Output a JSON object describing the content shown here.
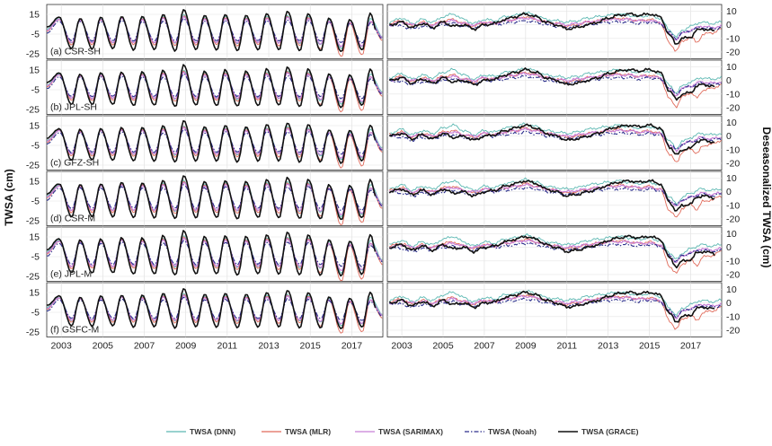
{
  "chart_data": {
    "type": "line",
    "ylabel_left": "TWSA (cm)",
    "ylabel_right": "Deseasonalized TWSA (cm)",
    "x_ticks": [
      "2003",
      "2005",
      "2007",
      "2009",
      "2011",
      "2013",
      "2015",
      "2017"
    ],
    "xlim": [
      2002.3,
      2018.5
    ],
    "left_axis": {
      "ylim": [
        -30,
        25
      ],
      "ticks": [
        "15",
        "-5",
        "-25"
      ],
      "tick_values": [
        15,
        -5,
        -25
      ]
    },
    "right_axis": {
      "ylim": [
        -25,
        15
      ],
      "ticks": [
        "10",
        "0",
        "-10",
        "-20"
      ],
      "tick_values": [
        10,
        0,
        -10,
        -20
      ]
    },
    "panels": [
      "(a) CSR-SH",
      "(b) JPL-SH",
      "(c) GFZ-SH",
      "(d) CSR-M",
      "(e) JPL-M",
      "(f) GSFC-M"
    ],
    "series": [
      {
        "name": "TWSA (DNN)",
        "color": "#5cb8b2",
        "dash": "",
        "weight": 0.9
      },
      {
        "name": "TWSA (MLR)",
        "color": "#e06a5a",
        "dash": "",
        "weight": 0.9
      },
      {
        "name": "TWSA (SARIMAX)",
        "color": "#c77fd6",
        "dash": "",
        "weight": 1.2
      },
      {
        "name": "TWSA (Noah)",
        "color": "#2c2f8c",
        "dash": "5,2,1.5,2",
        "weight": 1.1
      },
      {
        "name": "TWSA (GRACE)",
        "color": "#111111",
        "dash": "",
        "weight": 1.6
      }
    ],
    "seasonal": {
      "Noah": [
        [
          2002.3,
          -4
        ],
        [
          2002.9,
          8
        ],
        [
          2003.5,
          -12
        ],
        [
          2003.9,
          8
        ],
        [
          2004.5,
          -12
        ],
        [
          2004.9,
          8
        ],
        [
          2005.5,
          -12
        ],
        [
          2005.9,
          9
        ],
        [
          2006.5,
          -12
        ],
        [
          2006.9,
          8
        ],
        [
          2007.5,
          -12
        ],
        [
          2007.9,
          8
        ],
        [
          2008.5,
          -12
        ],
        [
          2008.9,
          11
        ],
        [
          2009.5,
          -12
        ],
        [
          2009.9,
          8
        ],
        [
          2010.5,
          -12
        ],
        [
          2010.9,
          9
        ],
        [
          2011.5,
          -12
        ],
        [
          2011.9,
          8
        ],
        [
          2012.5,
          -12
        ],
        [
          2012.9,
          9
        ],
        [
          2013.5,
          -12
        ],
        [
          2013.9,
          9
        ],
        [
          2014.5,
          -12
        ],
        [
          2014.9,
          9
        ],
        [
          2015.5,
          -12
        ],
        [
          2015.9,
          7
        ],
        [
          2016.5,
          -14
        ],
        [
          2016.9,
          6
        ],
        [
          2017.5,
          -14
        ],
        [
          2017.9,
          6
        ],
        [
          2018.5,
          -10
        ]
      ],
      "GRACE": [
        [
          2002.3,
          2
        ],
        [
          2002.9,
          12
        ],
        [
          2003.5,
          -20
        ],
        [
          2003.9,
          11
        ],
        [
          2004.5,
          -20
        ],
        [
          2004.9,
          12
        ],
        [
          2005.5,
          -20
        ],
        [
          2005.9,
          13
        ],
        [
          2006.5,
          -21
        ],
        [
          2006.9,
          13
        ],
        [
          2007.5,
          -21
        ],
        [
          2007.9,
          15
        ],
        [
          2008.5,
          -22
        ],
        [
          2008.9,
          20
        ],
        [
          2009.5,
          -21
        ],
        [
          2009.9,
          14
        ],
        [
          2010.5,
          -21
        ],
        [
          2010.9,
          15
        ],
        [
          2011.5,
          -22
        ],
        [
          2011.9,
          14
        ],
        [
          2012.5,
          -21
        ],
        [
          2012.9,
          16
        ],
        [
          2013.5,
          -21
        ],
        [
          2013.9,
          18
        ],
        [
          2014.5,
          -22
        ],
        [
          2014.9,
          16
        ],
        [
          2015.5,
          -22
        ],
        [
          2015.9,
          11
        ],
        [
          2016.5,
          -23
        ],
        [
          2016.9,
          10
        ],
        [
          2017.5,
          -21
        ],
        [
          2017.9,
          16
        ],
        [
          2018.2,
          -2
        ]
      ],
      "MLR": [
        [
          2002.3,
          -2
        ],
        [
          2002.9,
          10
        ],
        [
          2003.5,
          -16
        ],
        [
          2003.9,
          10
        ],
        [
          2004.5,
          -16
        ],
        [
          2004.9,
          10
        ],
        [
          2005.5,
          -16
        ],
        [
          2005.9,
          12
        ],
        [
          2006.5,
          -16
        ],
        [
          2006.9,
          11
        ],
        [
          2007.5,
          -16
        ],
        [
          2007.9,
          12
        ],
        [
          2008.5,
          -17
        ],
        [
          2008.9,
          14
        ],
        [
          2009.5,
          -16
        ],
        [
          2009.9,
          11
        ],
        [
          2010.5,
          -16
        ],
        [
          2010.9,
          12
        ],
        [
          2011.5,
          -17
        ],
        [
          2011.9,
          11
        ],
        [
          2012.5,
          -16
        ],
        [
          2012.9,
          12
        ],
        [
          2013.5,
          -17
        ],
        [
          2013.9,
          13
        ],
        [
          2014.5,
          -17
        ],
        [
          2014.9,
          12
        ],
        [
          2015.5,
          -20
        ],
        [
          2015.9,
          8
        ],
        [
          2016.5,
          -28
        ],
        [
          2016.9,
          6
        ],
        [
          2017.5,
          -26
        ],
        [
          2017.9,
          8
        ],
        [
          2018.5,
          -12
        ]
      ],
      "DNN": [
        [
          2002.3,
          0
        ],
        [
          2002.9,
          11
        ],
        [
          2003.5,
          -14
        ],
        [
          2003.9,
          10
        ],
        [
          2004.5,
          -14
        ],
        [
          2004.9,
          11
        ],
        [
          2005.5,
          -14
        ],
        [
          2005.9,
          12
        ],
        [
          2006.5,
          -14
        ],
        [
          2006.9,
          12
        ],
        [
          2007.5,
          -14
        ],
        [
          2007.9,
          13
        ],
        [
          2008.5,
          -15
        ],
        [
          2008.9,
          15
        ],
        [
          2009.5,
          -14
        ],
        [
          2009.9,
          12
        ],
        [
          2010.5,
          -14
        ],
        [
          2010.9,
          13
        ],
        [
          2011.5,
          -15
        ],
        [
          2011.9,
          12
        ],
        [
          2012.5,
          -14
        ],
        [
          2012.9,
          13
        ],
        [
          2013.5,
          -14
        ],
        [
          2013.9,
          14
        ],
        [
          2014.5,
          -15
        ],
        [
          2014.9,
          13
        ],
        [
          2015.5,
          -16
        ],
        [
          2015.9,
          10
        ],
        [
          2016.5,
          -20
        ],
        [
          2016.9,
          9
        ],
        [
          2017.5,
          -18
        ],
        [
          2017.9,
          11
        ],
        [
          2018.5,
          -8
        ]
      ],
      "SARIMAX": [
        [
          2002.3,
          -1
        ],
        [
          2002.9,
          10
        ],
        [
          2003.5,
          -14
        ],
        [
          2003.9,
          9
        ],
        [
          2004.5,
          -14
        ],
        [
          2004.9,
          10
        ],
        [
          2005.5,
          -14
        ],
        [
          2005.9,
          11
        ],
        [
          2006.5,
          -14
        ],
        [
          2006.9,
          10
        ],
        [
          2007.5,
          -14
        ],
        [
          2007.9,
          11
        ],
        [
          2008.5,
          -14
        ],
        [
          2008.9,
          13
        ],
        [
          2009.5,
          -14
        ],
        [
          2009.9,
          10
        ],
        [
          2010.5,
          -14
        ],
        [
          2010.9,
          11
        ],
        [
          2011.5,
          -14
        ],
        [
          2011.9,
          10
        ],
        [
          2012.5,
          -14
        ],
        [
          2012.9,
          11
        ],
        [
          2013.5,
          -14
        ],
        [
          2013.9,
          12
        ],
        [
          2014.5,
          -14
        ],
        [
          2014.9,
          11
        ],
        [
          2015.5,
          -15
        ],
        [
          2015.9,
          8
        ],
        [
          2016.5,
          -18
        ],
        [
          2016.9,
          7
        ],
        [
          2017.5,
          -17
        ],
        [
          2017.9,
          8
        ],
        [
          2018.5,
          -9
        ]
      ]
    },
    "deseasonalized": {
      "GRACE": [
        [
          2002.4,
          0
        ],
        [
          2003.0,
          2
        ],
        [
          2003.5,
          -2
        ],
        [
          2004.0,
          1
        ],
        [
          2004.5,
          -2
        ],
        [
          2005.0,
          2
        ],
        [
          2005.5,
          -1
        ],
        [
          2006.0,
          0
        ],
        [
          2006.5,
          -3
        ],
        [
          2007.0,
          0
        ],
        [
          2007.5,
          1
        ],
        [
          2008.0,
          4
        ],
        [
          2008.5,
          6
        ],
        [
          2009.0,
          8
        ],
        [
          2009.5,
          6
        ],
        [
          2010.0,
          2
        ],
        [
          2010.5,
          0
        ],
        [
          2011.0,
          -3
        ],
        [
          2011.5,
          -2
        ],
        [
          2012.0,
          0
        ],
        [
          2012.5,
          2
        ],
        [
          2013.0,
          5
        ],
        [
          2013.5,
          7
        ],
        [
          2014.0,
          8
        ],
        [
          2014.5,
          7
        ],
        [
          2015.0,
          8
        ],
        [
          2015.5,
          6
        ],
        [
          2016.0,
          -8
        ],
        [
          2016.3,
          -14
        ],
        [
          2016.6,
          -10
        ],
        [
          2017.0,
          -9
        ],
        [
          2017.3,
          -4
        ],
        [
          2017.6,
          -3
        ],
        [
          2018.0,
          -4
        ],
        [
          2018.2,
          -5
        ]
      ],
      "Noah": [
        [
          2002.4,
          0
        ],
        [
          2003.0,
          -1
        ],
        [
          2003.5,
          -3
        ],
        [
          2004.0,
          -1
        ],
        [
          2004.5,
          -2
        ],
        [
          2005.0,
          0
        ],
        [
          2005.5,
          1
        ],
        [
          2006.0,
          -1
        ],
        [
          2006.5,
          -2
        ],
        [
          2007.0,
          0
        ],
        [
          2007.5,
          0
        ],
        [
          2008.0,
          1
        ],
        [
          2008.5,
          2
        ],
        [
          2009.0,
          3
        ],
        [
          2009.5,
          2
        ],
        [
          2010.0,
          0
        ],
        [
          2010.5,
          -1
        ],
        [
          2011.0,
          -2
        ],
        [
          2011.5,
          -1
        ],
        [
          2012.0,
          0
        ],
        [
          2012.5,
          1
        ],
        [
          2013.0,
          2
        ],
        [
          2013.5,
          2
        ],
        [
          2014.0,
          2
        ],
        [
          2014.5,
          1
        ],
        [
          2015.0,
          2
        ],
        [
          2015.5,
          1
        ],
        [
          2016.0,
          -6
        ],
        [
          2016.3,
          -10
        ],
        [
          2016.6,
          -6
        ],
        [
          2017.0,
          -4
        ],
        [
          2017.5,
          -2
        ],
        [
          2018.0,
          -3
        ],
        [
          2018.5,
          -2
        ]
      ],
      "MLR": [
        [
          2002.4,
          1
        ],
        [
          2003.0,
          3
        ],
        [
          2003.5,
          -1
        ],
        [
          2004.0,
          2
        ],
        [
          2004.5,
          0
        ],
        [
          2005.0,
          3
        ],
        [
          2005.5,
          4
        ],
        [
          2006.0,
          1
        ],
        [
          2006.5,
          -1
        ],
        [
          2007.0,
          2
        ],
        [
          2007.5,
          1
        ],
        [
          2008.0,
          3
        ],
        [
          2008.5,
          4
        ],
        [
          2009.0,
          6
        ],
        [
          2009.5,
          4
        ],
        [
          2010.0,
          2
        ],
        [
          2010.5,
          1
        ],
        [
          2011.0,
          -1
        ],
        [
          2011.5,
          0
        ],
        [
          2012.0,
          2
        ],
        [
          2012.5,
          3
        ],
        [
          2013.0,
          4
        ],
        [
          2013.5,
          5
        ],
        [
          2014.0,
          4
        ],
        [
          2014.5,
          3
        ],
        [
          2015.0,
          4
        ],
        [
          2015.5,
          2
        ],
        [
          2016.0,
          -14
        ],
        [
          2016.3,
          -19
        ],
        [
          2016.6,
          -12
        ],
        [
          2017.0,
          -9
        ],
        [
          2017.3,
          -13
        ],
        [
          2017.6,
          -7
        ],
        [
          2018.0,
          -6
        ],
        [
          2018.5,
          -3
        ]
      ],
      "DNN": [
        [
          2002.4,
          2
        ],
        [
          2003.0,
          5
        ],
        [
          2003.5,
          1
        ],
        [
          2004.0,
          4
        ],
        [
          2004.5,
          2
        ],
        [
          2005.0,
          6
        ],
        [
          2005.5,
          8
        ],
        [
          2006.0,
          4
        ],
        [
          2006.5,
          1
        ],
        [
          2007.0,
          4
        ],
        [
          2007.5,
          3
        ],
        [
          2008.0,
          6
        ],
        [
          2008.5,
          7
        ],
        [
          2009.0,
          9
        ],
        [
          2009.5,
          7
        ],
        [
          2010.0,
          4
        ],
        [
          2010.5,
          3
        ],
        [
          2011.0,
          2
        ],
        [
          2011.5,
          3
        ],
        [
          2012.0,
          5
        ],
        [
          2012.5,
          6
        ],
        [
          2013.0,
          7
        ],
        [
          2013.5,
          8
        ],
        [
          2014.0,
          7
        ],
        [
          2014.5,
          6
        ],
        [
          2015.0,
          7
        ],
        [
          2015.5,
          5
        ],
        [
          2016.0,
          -4
        ],
        [
          2016.3,
          -9
        ],
        [
          2016.6,
          -4
        ],
        [
          2017.0,
          -1
        ],
        [
          2017.5,
          2
        ],
        [
          2018.0,
          1
        ],
        [
          2018.5,
          2
        ]
      ],
      "SARIMAX": [
        [
          2002.4,
          0
        ],
        [
          2003.0,
          2
        ],
        [
          2003.5,
          0
        ],
        [
          2004.0,
          1
        ],
        [
          2004.5,
          0
        ],
        [
          2005.0,
          2
        ],
        [
          2005.5,
          3
        ],
        [
          2006.0,
          1
        ],
        [
          2006.5,
          0
        ],
        [
          2007.0,
          2
        ],
        [
          2007.5,
          1
        ],
        [
          2008.0,
          3
        ],
        [
          2008.5,
          4
        ],
        [
          2009.0,
          5
        ],
        [
          2009.5,
          4
        ],
        [
          2010.0,
          2
        ],
        [
          2010.5,
          1
        ],
        [
          2011.0,
          0
        ],
        [
          2011.5,
          1
        ],
        [
          2012.0,
          2
        ],
        [
          2012.5,
          3
        ],
        [
          2013.0,
          4
        ],
        [
          2013.5,
          4
        ],
        [
          2014.0,
          4
        ],
        [
          2014.5,
          3
        ],
        [
          2015.0,
          3
        ],
        [
          2015.5,
          2
        ],
        [
          2016.0,
          -7
        ],
        [
          2016.3,
          -11
        ],
        [
          2016.6,
          -6
        ],
        [
          2017.0,
          -4
        ],
        [
          2017.5,
          -1
        ],
        [
          2018.0,
          -2
        ],
        [
          2018.5,
          -1
        ]
      ]
    },
    "panel_scale": [
      1.0,
      1.0,
      1.0,
      1.05,
      1.08,
      0.95
    ]
  }
}
